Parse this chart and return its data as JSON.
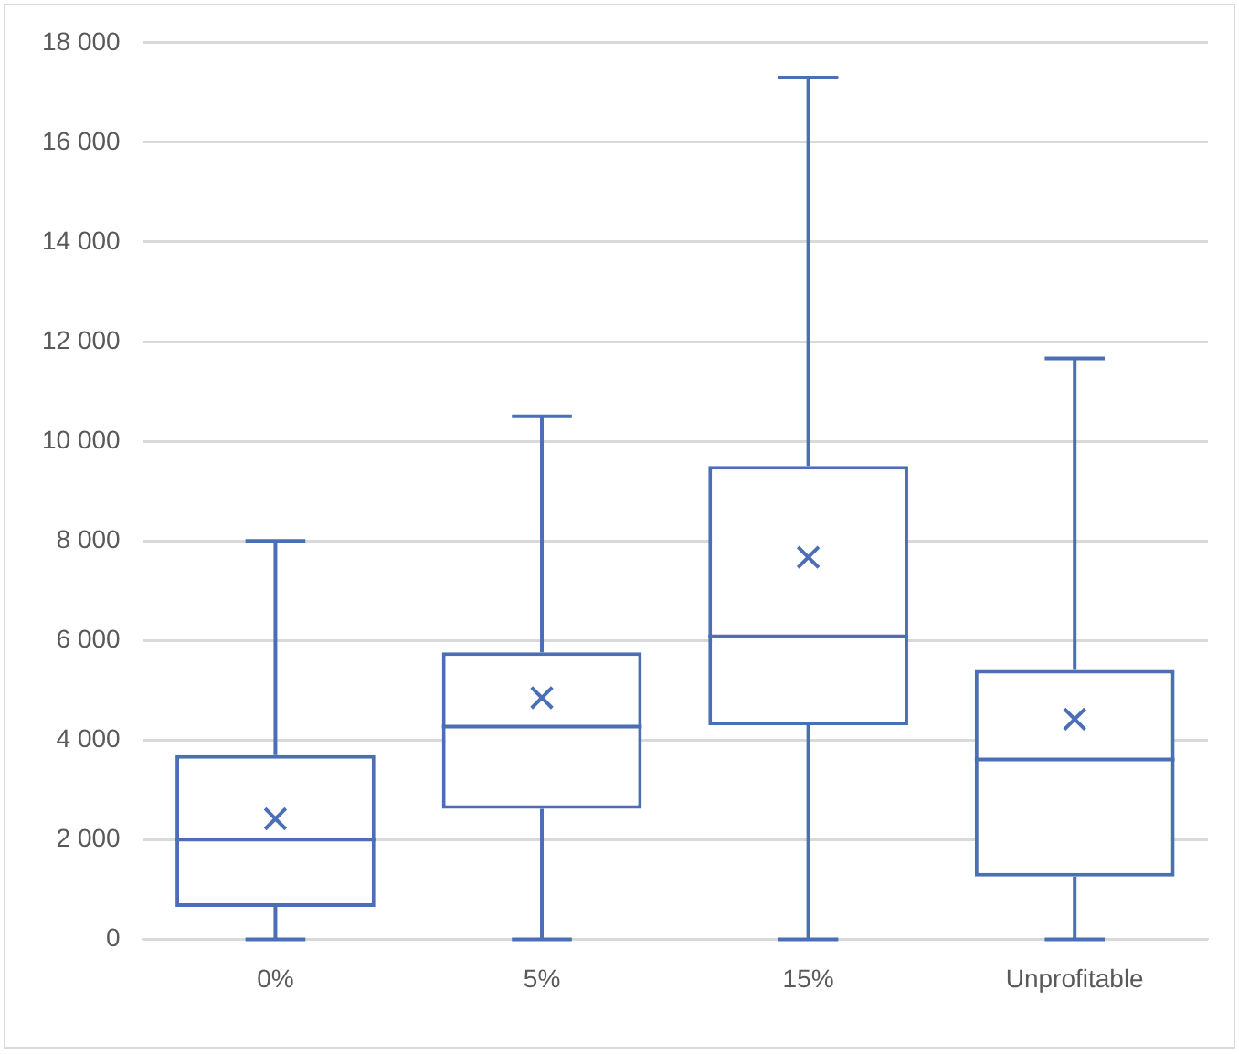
{
  "chart_data": {
    "type": "box",
    "categories": [
      "0%",
      "5%",
      "15%",
      "Unprofitable"
    ],
    "color": "#4a6fb5",
    "boxes": [
      {
        "low": 0,
        "q1": 650,
        "median": 2000,
        "q3": 3700,
        "high": 8000,
        "mean": 2420
      },
      {
        "low": 0,
        "q1": 2620,
        "median": 4270,
        "q3": 5760,
        "high": 10500,
        "mean": 4850
      },
      {
        "low": 0,
        "q1": 4300,
        "median": 6080,
        "q3": 9500,
        "high": 17300,
        "mean": 7670
      },
      {
        "low": 0,
        "q1": 1260,
        "median": 3610,
        "q3": 5410,
        "high": 11660,
        "mean": 4420
      }
    ],
    "ylim": [
      0,
      18000
    ],
    "yticks": [
      {
        "value": 0,
        "label": "0"
      },
      {
        "value": 2000,
        "label": "2 000"
      },
      {
        "value": 4000,
        "label": "4 000"
      },
      {
        "value": 6000,
        "label": "6 000"
      },
      {
        "value": 8000,
        "label": "8 000"
      },
      {
        "value": 10000,
        "label": "10 000"
      },
      {
        "value": 12000,
        "label": "12 000"
      },
      {
        "value": 14000,
        "label": "14 000"
      },
      {
        "value": 16000,
        "label": "16 000"
      },
      {
        "value": 18000,
        "label": "18 000"
      }
    ],
    "grid": "y",
    "marker": "cross",
    "legend": false
  }
}
